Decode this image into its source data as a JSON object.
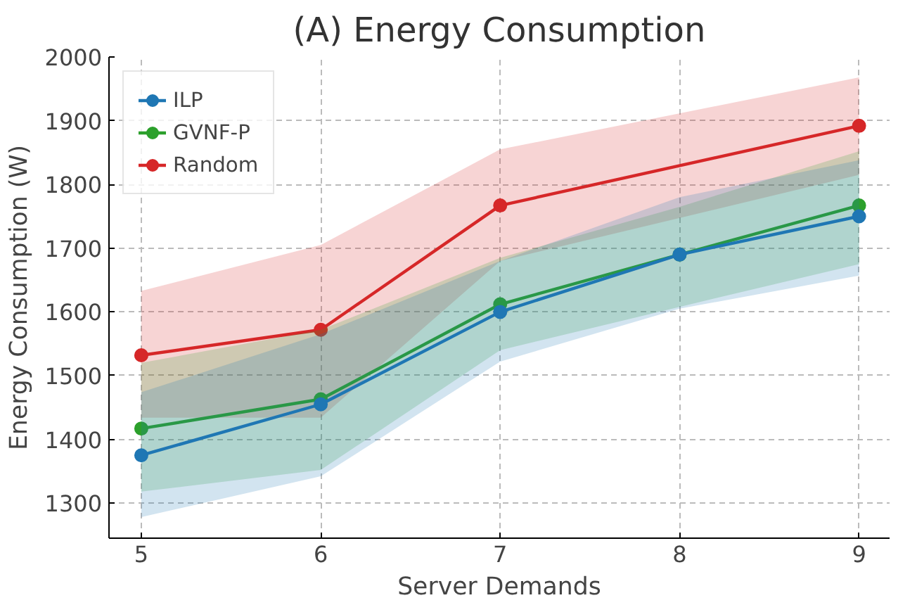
{
  "chart_data": {
    "type": "line",
    "title": "(A) Energy Consumption",
    "xlabel": "Server Demands",
    "ylabel": "Energy Consumption (W)",
    "x": [
      5,
      6,
      7,
      8,
      9
    ],
    "series": [
      {
        "name": "ILP",
        "color": "#1f77b4",
        "values": [
          1375,
          1455,
          1600,
          1690,
          1750
        ],
        "lower": [
          1278,
          1342,
          1522,
          1605,
          1657
        ],
        "upper": [
          1474,
          1565,
          1680,
          1780,
          1838
        ]
      },
      {
        "name": "GVNF-P",
        "color": "#2ca02c",
        "values": [
          1417,
          1463,
          1612,
          1690,
          1767
        ],
        "lower": [
          1318,
          1352,
          1540,
          1608,
          1675
        ],
        "upper": [
          1520,
          1572,
          1685,
          1765,
          1852
        ]
      },
      {
        "name": "Random",
        "color": "#d62728",
        "x": [
          5,
          6,
          7,
          9
        ],
        "values": [
          1532,
          1572,
          1767,
          1892
        ],
        "lower": [
          1434,
          1434,
          1680,
          1815
        ],
        "upper": [
          1633,
          1705,
          1855,
          1968
        ]
      }
    ],
    "xlim": [
      4.82,
      9.17
    ],
    "ylim": [
      1245,
      2000
    ],
    "xticks": [
      5,
      6,
      7,
      8,
      9
    ],
    "yticks": [
      1300,
      1400,
      1500,
      1600,
      1700,
      1800,
      1900,
      2000
    ],
    "grid": true,
    "legend": "top left",
    "marker": "circle",
    "line_style": "solid"
  }
}
